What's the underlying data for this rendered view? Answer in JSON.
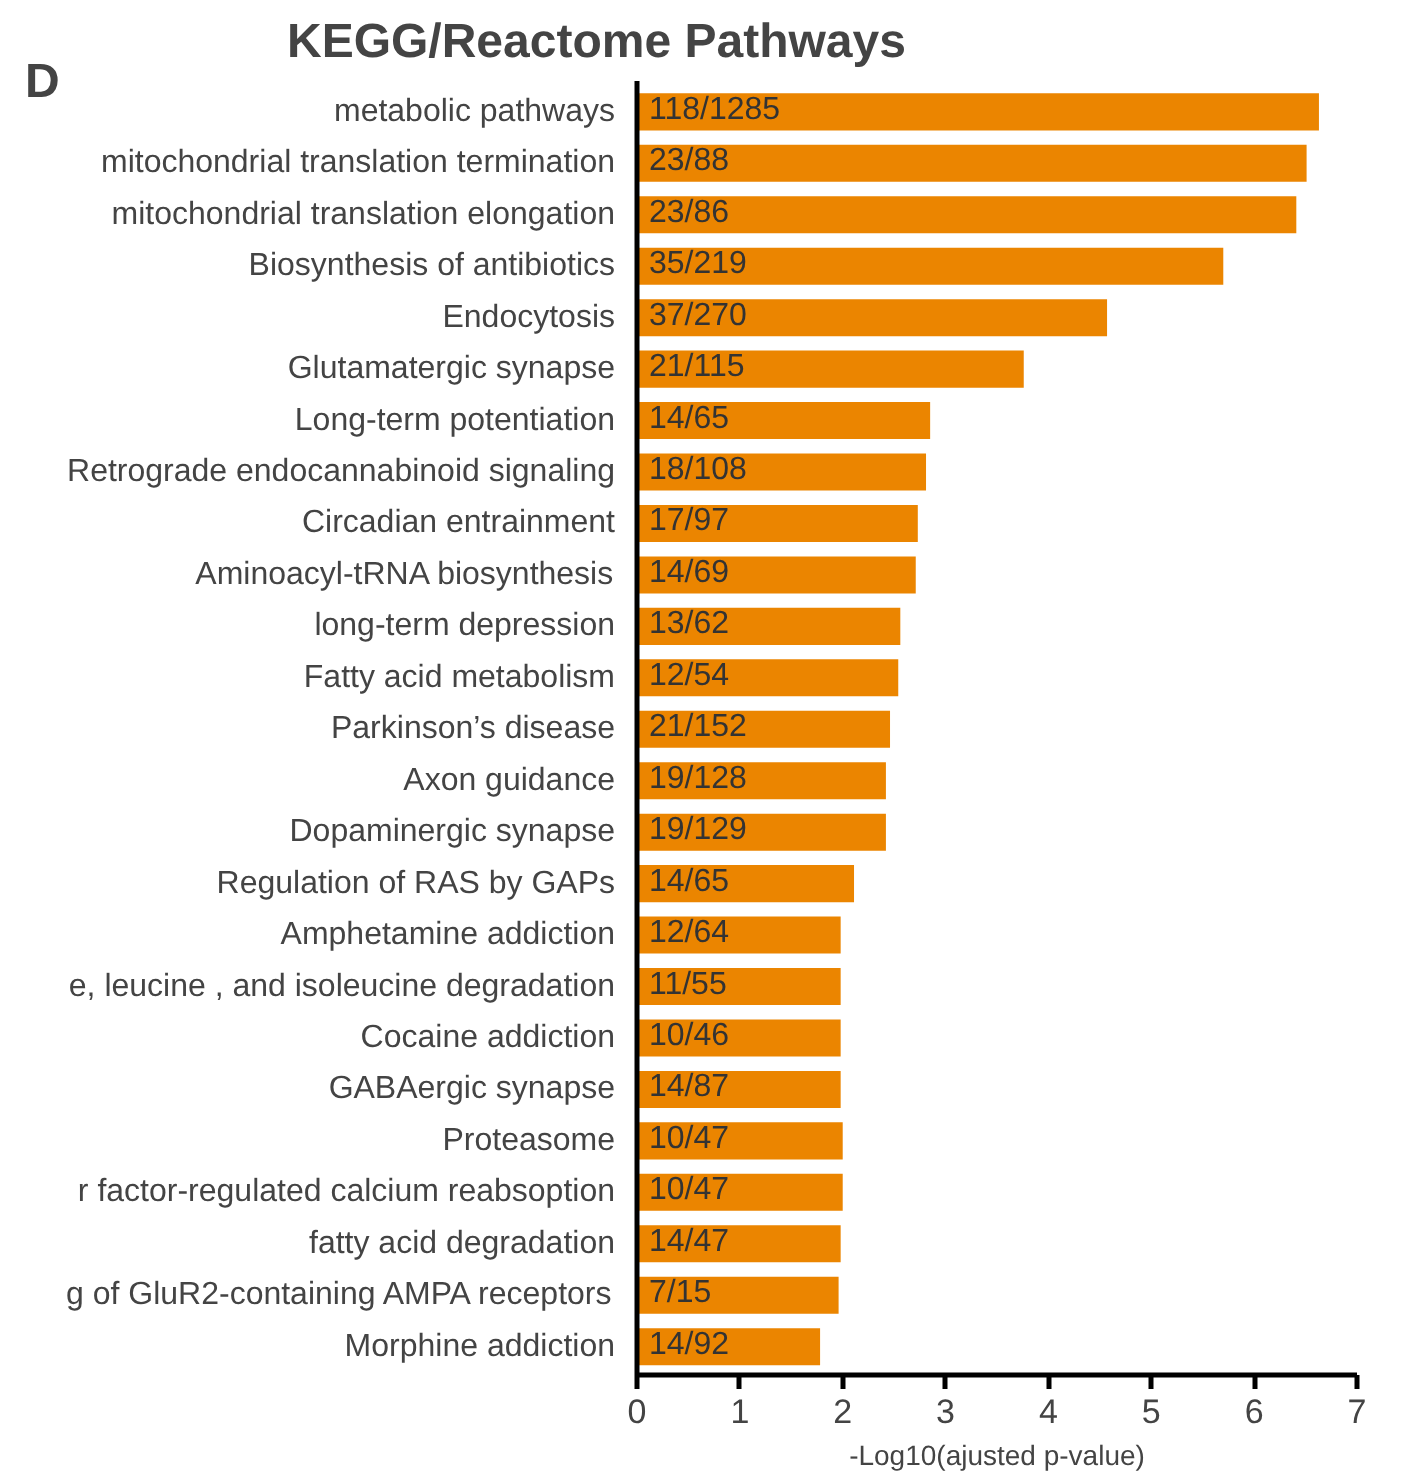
{
  "chart_data": {
    "type": "bar",
    "orientation": "horizontal",
    "title": "KEGG/Reactome Pathways",
    "xlabel": "-Log10(ajusted p-value)",
    "annotations": [
      "D"
    ],
    "categories": [
      "metabolic pathways",
      "mitochondrial translation termination",
      "mitochondrial translation elongation",
      "Biosynthesis of antibiotics",
      "Endocytosis",
      "Glutamatergic synapse",
      "Long-term potentiation",
      "Retrograde endocannabinoid signaling",
      "Circadian entrainment",
      "Aminoacyl-tRNA biosynthesis",
      "long-term depression",
      "Fatty acid metabolism",
      "Parkinson’s disease",
      "Axon guidance",
      "Dopaminergic synapse",
      "Regulation of RAS by GAPs",
      "Amphetamine addiction",
      "e, leucine , and isoleucine degradation",
      "Cocaine addiction",
      "GABAergic synapse",
      "Proteasome",
      "r factor-regulated calcium reabsoption",
      "fatty acid degradation",
      "g of GluR2-containing AMPA receptors",
      "Morphine addiction"
    ],
    "values": [
      6.63,
      6.51,
      6.41,
      5.7,
      4.57,
      3.76,
      2.85,
      2.81,
      2.73,
      2.71,
      2.56,
      2.54,
      2.46,
      2.42,
      2.42,
      2.11,
      1.98,
      1.98,
      1.98,
      1.98,
      2.0,
      2.0,
      1.98,
      1.96,
      1.78
    ],
    "value_labels": [
      "118/1285",
      "23/88",
      "23/86",
      "35/219",
      "37/270",
      "21/115",
      "14/65",
      "18/108",
      "17/97",
      "14/69",
      "13/62",
      "12/54",
      "21/152",
      "19/128",
      "19/129",
      "14/65",
      "12/64",
      "11/55",
      "10/46",
      "14/87",
      "10/47",
      "10/47",
      "14/47",
      "7/15",
      "14/92"
    ],
    "color": "#eb8500",
    "xlim": [
      0,
      7
    ],
    "xticks": [
      0,
      1,
      2,
      3,
      4,
      5,
      6,
      7
    ],
    "grid": false
  }
}
